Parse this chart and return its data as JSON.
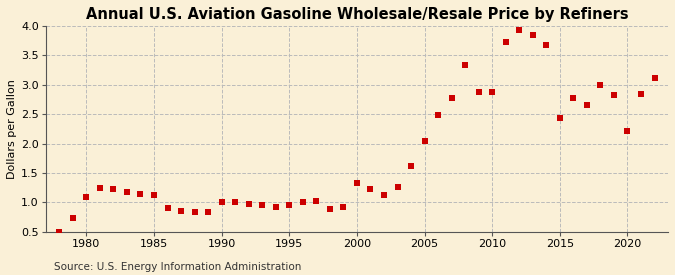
{
  "title": "Annual U.S. Aviation Gasoline Wholesale/Resale Price by Refiners",
  "ylabel": "Dollars per Gallon",
  "source": "Source: U.S. Energy Information Administration",
  "background_color": "#FAF0D7",
  "years": [
    1978,
    1979,
    1980,
    1981,
    1982,
    1983,
    1984,
    1985,
    1986,
    1987,
    1988,
    1989,
    1990,
    1991,
    1992,
    1993,
    1994,
    1995,
    1996,
    1997,
    1998,
    1999,
    2000,
    2001,
    2002,
    2003,
    2004,
    2005,
    2006,
    2007,
    2008,
    2009,
    2010,
    2011,
    2012,
    2013,
    2014,
    2015,
    2016,
    2017,
    2018,
    2019,
    2020,
    2021,
    2022
  ],
  "values": [
    0.5,
    0.73,
    1.1,
    1.25,
    1.22,
    1.18,
    1.15,
    1.12,
    0.9,
    0.85,
    0.83,
    0.83,
    1.0,
    1.0,
    0.98,
    0.95,
    0.93,
    0.95,
    1.0,
    1.03,
    0.88,
    0.92,
    1.33,
    1.23,
    1.12,
    1.27,
    1.62,
    2.05,
    2.49,
    2.77,
    3.34,
    2.87,
    2.87,
    3.73,
    3.93,
    3.85,
    3.67,
    2.43,
    2.77,
    2.66,
    3.0,
    2.83,
    2.22,
    2.85,
    3.12
  ],
  "marker_color": "#CC0000",
  "marker_size": 5,
  "ylim": [
    0.5,
    4.0
  ],
  "yticks": [
    0.5,
    1.0,
    1.5,
    2.0,
    2.5,
    3.0,
    3.5,
    4.0
  ],
  "ytick_labels": [
    "0.5",
    "1.0",
    "1.5",
    "2.0",
    "2.5",
    "3.0",
    "3.5",
    "4.0"
  ],
  "xlim": [
    1977.0,
    2023.0
  ],
  "xticks": [
    1980,
    1985,
    1990,
    1995,
    2000,
    2005,
    2010,
    2015,
    2020
  ],
  "grid_color": "#BBBBBB",
  "spine_color": "#555555",
  "title_fontsize": 10.5,
  "axis_fontsize": 8,
  "source_fontsize": 7.5
}
